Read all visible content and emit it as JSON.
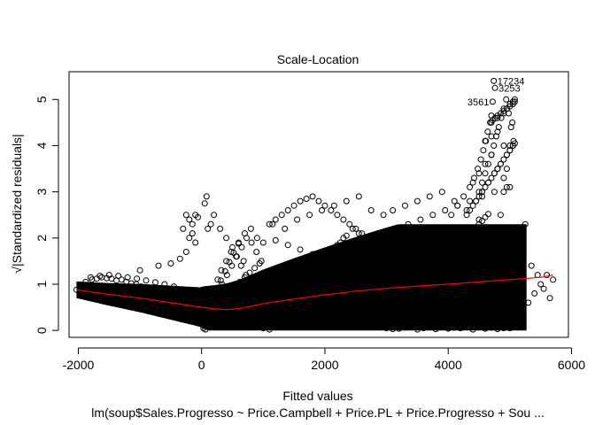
{
  "chart_data": {
    "type": "scatter",
    "title": "Scale-Location",
    "xlabel": "Fitted values",
    "ylabel": "√|Standardized residuals|",
    "subtitle": "lm(soup$Sales.Progresso ~ Price.Campbell + Price.PL + Price.Progresso + Sou ...",
    "xlim": [
      -2150,
      5950
    ],
    "ylim": [
      -0.15,
      5.6
    ],
    "x_ticks": [
      -2000,
      0,
      2000,
      4000,
      6000
    ],
    "x_tick_labels": [
      "-2000",
      "0",
      "2000",
      "4000",
      "6000"
    ],
    "y_ticks": [
      0,
      1,
      2,
      3,
      4,
      5
    ],
    "y_tick_labels": [
      "0",
      "1",
      "2",
      "3",
      "4",
      "5"
    ],
    "grid": false,
    "legend": "none",
    "series": [
      {
        "role": "points",
        "marker": "open-circle",
        "color": "#000000",
        "x": [
          -2030,
          -1880,
          -1780,
          -1700,
          -1620,
          -1540,
          -1460,
          -1380,
          -1300,
          -1220,
          -1140,
          -1060,
          -980,
          -900,
          -820,
          -740,
          -660,
          -580,
          -500,
          -420,
          -340,
          -260,
          -180,
          -100,
          -20,
          -1800,
          -1650,
          -1500,
          -1350,
          -1200,
          -1050,
          -900,
          -750,
          -600,
          -450,
          -300,
          -150,
          -50,
          -1000,
          -700,
          -500,
          -350,
          -250,
          -200,
          -150,
          -100,
          -60,
          30,
          60,
          90,
          130,
          180,
          230,
          300,
          380,
          460,
          540,
          620,
          700,
          780,
          860,
          940,
          40,
          80,
          120,
          160,
          200,
          260,
          320,
          400,
          480,
          560,
          640,
          720,
          800,
          880,
          960,
          60,
          100,
          140,
          200,
          260,
          330,
          410,
          490,
          570,
          650,
          730,
          810,
          890,
          970,
          80,
          120,
          160,
          200,
          250,
          310,
          380,
          450,
          520,
          600,
          680,
          760,
          840,
          920,
          1000,
          1000,
          1100,
          1200,
          1300,
          1400,
          1500,
          1600,
          1700,
          1800,
          1900,
          2000,
          2100,
          2200,
          2300,
          2400,
          2500,
          2600,
          2700,
          2800,
          2900,
          3000,
          1050,
          1150,
          1250,
          1350,
          1450,
          1550,
          1650,
          1750,
          1850,
          1950,
          2050,
          2150,
          2250,
          2350,
          2450,
          2550,
          2650,
          2750,
          2850,
          2950,
          1100,
          1300,
          1500,
          1700,
          1900,
          2100,
          2300,
          2500,
          2700,
          2900,
          1200,
          1400,
          1600,
          1800,
          2000,
          2200,
          2400,
          2600,
          2800,
          3000,
          1150,
          1350,
          1550,
          1750,
          1950,
          2150,
          2350,
          2550,
          2750,
          2950,
          1250,
          1450,
          1650,
          1850,
          2050,
          2250,
          2450,
          2650,
          2850,
          3000,
          3100,
          3200,
          3300,
          3400,
          3500,
          3600,
          3700,
          3800,
          3900,
          4000,
          4100,
          4200,
          4300,
          4400,
          4500,
          4600,
          4700,
          4800,
          4900,
          3050,
          3150,
          3250,
          3350,
          3450,
          3550,
          3650,
          3750,
          3850,
          3950,
          4050,
          4150,
          4250,
          4350,
          4450,
          4550,
          4650,
          4750,
          4850,
          4950,
          3100,
          3300,
          3500,
          3700,
          3900,
          4100,
          4300,
          4500,
          4700,
          4900,
          3200,
          3400,
          3600,
          3800,
          4000,
          4200,
          4400,
          4600,
          4800,
          5000,
          3150,
          3350,
          3550,
          3750,
          3950,
          4150,
          4350,
          4550,
          4750,
          4950,
          3250,
          3450,
          3650,
          3850,
          4050,
          4250,
          4450,
          4650,
          4850,
          5050,
          4300,
          4350,
          4400,
          4450,
          4500,
          4550,
          4600,
          4650,
          4700,
          4750,
          4800,
          4850,
          4900,
          4950,
          5000,
          5050,
          4400,
          4500,
          4600,
          4700,
          4800,
          4900,
          5000,
          4450,
          4550,
          4650,
          4750,
          4850,
          4950,
          5050,
          4600,
          4700,
          4800,
          4900,
          5000,
          5080,
          4700,
          4800,
          4900,
          4950,
          5000,
          5050,
          5000,
          5050,
          5100,
          5150,
          5200,
          5300,
          5400,
          5500,
          5600,
          5700,
          5050,
          5100,
          5150,
          5200,
          5250,
          5350,
          5450,
          5550,
          5650,
          -300,
          -250,
          -200,
          -150,
          -100,
          50,
          80,
          100,
          150,
          200,
          300,
          400,
          500,
          600,
          700,
          800,
          900,
          1000,
          1100,
          1200,
          1300,
          1400,
          1500,
          1600,
          1700,
          1800,
          1900,
          2000,
          2100,
          2200,
          2300,
          2400,
          2500,
          2600,
          2700,
          2800,
          2900,
          3000,
          3100,
          3200,
          3300,
          3400,
          3500,
          3600,
          3700,
          3800,
          3900,
          4000,
          4100,
          4200,
          4300,
          4400,
          4500,
          4600,
          4700,
          4800,
          4900,
          4050,
          4150,
          4250,
          4350,
          4420,
          4480,
          4530,
          4570,
          4610,
          4640,
          4680,
          4720,
          4760,
          4800,
          4850,
          4900,
          4950,
          5000,
          5050,
          5080,
          4500,
          4550,
          4600,
          4650,
          4700,
          4740,
          4780,
          4820,
          4860,
          4900,
          4940,
          4980,
          5020,
          5060,
          4700,
          4760,
          4800,
          4850,
          4900,
          4950,
          5000,
          5040,
          5080,
          4750,
          4800,
          4850,
          4900,
          4960,
          5020,
          5060,
          4740,
          4760,
          4720,
          4700
        ],
        "y": [
          0.88,
          1.05,
          1.1,
          1.12,
          1.15,
          1.13,
          1.12,
          1.08,
          1.1,
          1.05,
          1.02,
          1.0,
          0.95,
          0.92,
          0.88,
          0.85,
          0.8,
          0.76,
          0.72,
          0.68,
          0.62,
          0.58,
          0.55,
          0.52,
          0.5,
          1.15,
          1.18,
          1.2,
          1.18,
          1.15,
          1.12,
          1.08,
          1.04,
          1.0,
          0.95,
          0.88,
          0.8,
          0.72,
          1.3,
          1.4,
          1.45,
          1.55,
          1.7,
          2.0,
          2.3,
          2.5,
          2.45,
          0.05,
          0.15,
          0.25,
          0.35,
          0.45,
          0.55,
          0.65,
          0.75,
          0.85,
          0.95,
          1.05,
          1.15,
          1.25,
          1.35,
          1.45,
          0.1,
          0.3,
          0.5,
          0.7,
          0.9,
          1.1,
          1.3,
          1.5,
          1.7,
          1.6,
          1.4,
          1.2,
          1.0,
          0.8,
          0.6,
          0.02,
          0.2,
          0.4,
          0.6,
          0.8,
          1.0,
          1.2,
          1.4,
          1.6,
          1.8,
          2.0,
          1.9,
          1.7,
          1.5,
          0.08,
          0.28,
          0.48,
          0.68,
          0.88,
          1.08,
          1.28,
          1.48,
          1.68,
          1.88,
          1.5,
          1.1,
          0.7,
          0.3,
          0.05,
          0.05,
          0.2,
          0.35,
          0.5,
          0.65,
          0.8,
          0.95,
          1.1,
          1.25,
          1.4,
          1.55,
          1.7,
          1.85,
          2.0,
          1.9,
          1.75,
          1.6,
          1.45,
          1.3,
          1.15,
          1.0,
          0.1,
          0.25,
          0.4,
          0.55,
          0.7,
          0.85,
          1.0,
          1.15,
          1.3,
          1.45,
          1.6,
          1.75,
          1.9,
          2.05,
          2.2,
          2.1,
          1.95,
          1.8,
          1.65,
          1.5,
          0.02,
          0.12,
          0.22,
          0.32,
          0.42,
          0.52,
          0.62,
          0.72,
          0.82,
          0.92,
          1.95,
          1.85,
          1.75,
          1.65,
          1.55,
          1.45,
          1.35,
          1.25,
          1.15,
          1.05,
          2.3,
          2.2,
          2.4,
          2.5,
          2.6,
          2.7,
          2.8,
          2.9,
          2.6,
          2.5,
          0.5,
          0.6,
          0.7,
          0.8,
          0.9,
          1.0,
          1.1,
          1.2,
          1.3,
          0.05,
          0.2,
          0.35,
          0.5,
          0.65,
          0.8,
          0.95,
          1.1,
          1.25,
          1.4,
          1.55,
          1.7,
          1.85,
          2.0,
          2.15,
          2.3,
          2.45,
          2.2,
          1.95,
          1.7,
          0.12,
          0.27,
          0.42,
          0.57,
          0.72,
          0.87,
          1.02,
          1.17,
          1.32,
          1.47,
          1.62,
          1.77,
          1.92,
          2.07,
          2.22,
          2.37,
          2.52,
          2.1,
          1.8,
          1.5,
          2.6,
          2.7,
          2.8,
          2.9,
          3.0,
          2.8,
          2.6,
          2.4,
          2.2,
          2.0,
          0.3,
          0.45,
          0.6,
          0.75,
          0.9,
          1.05,
          1.2,
          1.35,
          1.5,
          1.65,
          2.2,
          2.3,
          2.4,
          2.5,
          2.6,
          2.7,
          2.8,
          2.9,
          3.0,
          3.1,
          1.0,
          1.1,
          1.2,
          1.3,
          1.4,
          1.5,
          1.6,
          1.7,
          1.8,
          1.9,
          2.5,
          2.6,
          2.7,
          2.8,
          2.9,
          3.0,
          3.1,
          3.2,
          3.3,
          3.4,
          3.5,
          3.6,
          3.7,
          3.8,
          3.9,
          4.0,
          3.2,
          3.4,
          3.6,
          3.8,
          3.5,
          3.3,
          3.1,
          2.8,
          3.0,
          3.2,
          3.4,
          3.6,
          3.8,
          4.0,
          4.1,
          4.2,
          4.3,
          4.0,
          3.9,
          4.05,
          4.5,
          4.6,
          4.7,
          4.8,
          4.9,
          4.95,
          0.05,
          0.15,
          0.25,
          0.35,
          0.45,
          0.6,
          0.8,
          1.0,
          1.2,
          1.1,
          1.5,
          1.7,
          1.9,
          2.1,
          2.3,
          1.4,
          1.2,
          0.9,
          0.7,
          2.2,
          2.5,
          2.4,
          2.1,
          1.9,
          2.75,
          2.9,
          2.2,
          2.3,
          2.5,
          2.2,
          2.0,
          1.8,
          1.9,
          2.1,
          2.2,
          2.0,
          1.9,
          2.3,
          2.4,
          2.5,
          2.6,
          2.7,
          2.8,
          2.85,
          2.9,
          2.8,
          2.7,
          2.6,
          2.5,
          2.4,
          2.3,
          2.2,
          2.1,
          2.0,
          1.9,
          1.8,
          1.7,
          0.03,
          0.04,
          0.06,
          0.08,
          0.02,
          0.05,
          0.07,
          0.03,
          0.09,
          0.04,
          0.06,
          0.05,
          0.08,
          0.02,
          0.07,
          0.04,
          0.06,
          0.03,
          0.05,
          2.5,
          2.7,
          2.9,
          3.1,
          3.3,
          3.5,
          3.7,
          3.9,
          4.1,
          4.3,
          4.5,
          4.55,
          4.6,
          4.65,
          4.7,
          4.75,
          4.8,
          4.85,
          4.9,
          4.95,
          3.0,
          3.2,
          3.4,
          3.6,
          3.8,
          4.0,
          4.2,
          4.4,
          4.6,
          4.8,
          5.0,
          4.7,
          4.4,
          4.1,
          1.0,
          1.5,
          2.0,
          2.5,
          3.0,
          3.5,
          4.0,
          4.5,
          5.0,
          0.3,
          0.6,
          0.9,
          1.2,
          1.5,
          1.8,
          2.1,
          5.4,
          5.25,
          4.95,
          4.65
        ]
      },
      {
        "role": "smoother",
        "line": "lowess",
        "color": "#ff0000",
        "x": [
          -2030,
          -1500,
          -1000,
          -500,
          0,
          200,
          400,
          600,
          800,
          1000,
          1500,
          2000,
          2500,
          3000,
          3500,
          4000,
          4500,
          5000,
          5500,
          5700
        ],
        "y": [
          0.88,
          0.78,
          0.7,
          0.6,
          0.5,
          0.47,
          0.45,
          0.47,
          0.52,
          0.58,
          0.68,
          0.77,
          0.85,
          0.91,
          0.96,
          1.0,
          1.05,
          1.1,
          1.15,
          1.2
        ]
      }
    ],
    "annotations": [
      {
        "text": "17234",
        "x": 4740,
        "y": 5.4
      },
      {
        "text": "3253",
        "x": 4760,
        "y": 5.25
      },
      {
        "text": "3561",
        "x": 4720,
        "y": 4.95
      }
    ]
  }
}
